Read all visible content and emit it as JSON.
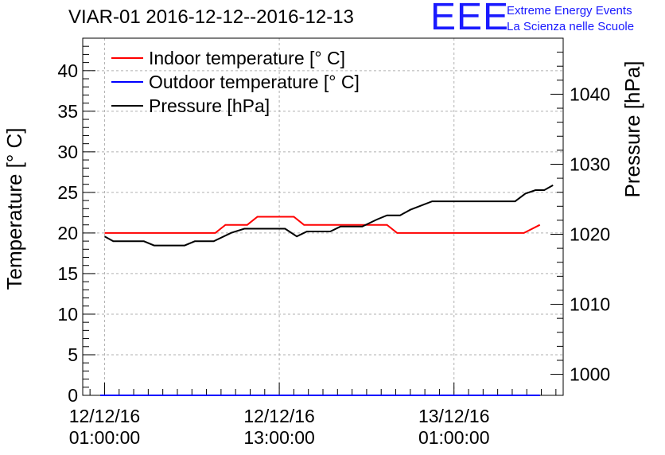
{
  "header": {
    "title": "VIAR-01 2016-12-12--2016-12-13",
    "logo": "EEE",
    "org_line1": "Extreme Energy Events",
    "org_line2": "La Scienza nelle Scuole"
  },
  "chart_data": {
    "type": "line",
    "xlabel": "",
    "ylabel": "Temperature [° C]",
    "ylabel_right": "Pressure [hPa]",
    "ylim": [
      0,
      44
    ],
    "ylim_right": [
      997,
      1048
    ],
    "y_ticks": [
      "0",
      "5",
      "10",
      "15",
      "20",
      "25",
      "30",
      "35",
      "40"
    ],
    "y_ticks_right": [
      "1000",
      "1010",
      "1020",
      "1030",
      "1040"
    ],
    "xlim": [
      -1.5,
      31.5
    ],
    "x_ticks": [
      {
        "x": 0,
        "line1": "12/12/16",
        "line2": "01:00:00"
      },
      {
        "x": 12,
        "line1": "12/12/16",
        "line2": "13:00:00"
      },
      {
        "x": 24,
        "line1": "13/12/16",
        "line2": "01:00:00"
      }
    ],
    "x_unit": "hours since 12/12/16 01:00:00",
    "grid": true,
    "legend_position": "top-left",
    "series": [
      {
        "name": "Indoor temperature [° C]",
        "axis": "left",
        "color": "#ff0000",
        "x": [
          0,
          7.6,
          8.3,
          9.8,
          10.5,
          13.0,
          13.7,
          19.4,
          20.1,
          28.8,
          29.9
        ],
        "values": [
          20,
          20,
          21,
          21,
          22,
          22,
          21,
          21,
          20,
          20,
          21
        ]
      },
      {
        "name": "Outdoor temperature [° C]",
        "axis": "left",
        "color": "#0000ff",
        "x": [
          -0.3,
          29.9
        ],
        "values": [
          0,
          0
        ]
      },
      {
        "name": "Pressure [hPa]",
        "axis": "right",
        "color": "#000000",
        "x": [
          0,
          0.6,
          2.7,
          3.4,
          5.5,
          6.2,
          7.5,
          8.7,
          9.6,
          10.5,
          11.6,
          12.4,
          13.2,
          13.9,
          15.5,
          16.2,
          17.0,
          17.7,
          18.7,
          19.4,
          20.3,
          21.0,
          22.5,
          23.3,
          28.2,
          28.9,
          29.6,
          30.2,
          30.8
        ],
        "values": [
          1019.7,
          1019.0,
          1019.0,
          1018.4,
          1018.4,
          1019.0,
          1019.0,
          1020.2,
          1020.8,
          1020.8,
          1020.8,
          1020.8,
          1019.7,
          1020.4,
          1020.4,
          1021.1,
          1021.1,
          1021.1,
          1022.1,
          1022.7,
          1022.7,
          1023.5,
          1024.7,
          1024.7,
          1024.7,
          1025.8,
          1026.3,
          1026.3,
          1027.0
        ]
      }
    ]
  }
}
